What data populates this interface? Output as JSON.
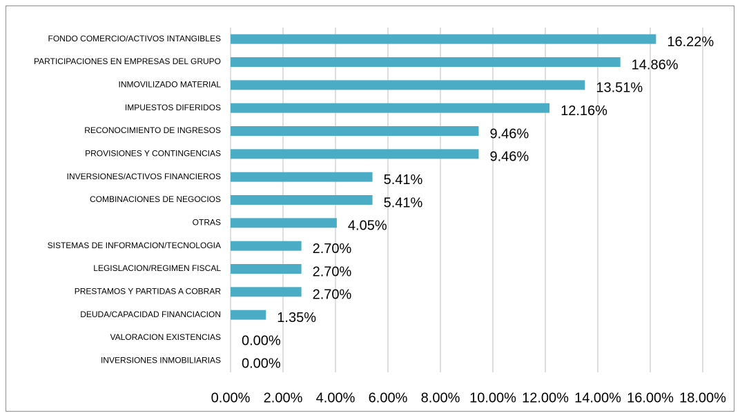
{
  "chart_data": {
    "type": "bar",
    "orientation": "horizontal",
    "categories": [
      "FONDO COMERCIO/ACTIVOS INTANGIBLES",
      "PARTICIPACIONES EN EMPRESAS DEL GRUPO",
      "INMOVILIZADO MATERIAL",
      "IMPUESTOS DIFERIDOS",
      "RECONOCIMIENTO DE INGRESOS",
      "PROVISIONES Y CONTINGENCIAS",
      "INVERSIONES/ACTIVOS FINANCIEROS",
      "COMBINACIONES DE NEGOCIOS",
      "OTRAS",
      "SISTEMAS DE INFORMACION/TECNOLOGIA",
      "LEGISLACION/REGIMEN FISCAL",
      "PRESTAMOS Y PARTIDAS A COBRAR",
      "DEUDA/CAPACIDAD FINANCIACION",
      "VALORACION EXISTENCIAS",
      "INVERSIONES INMOBILIARIAS"
    ],
    "values": [
      16.22,
      14.86,
      13.51,
      12.16,
      9.46,
      9.46,
      5.41,
      5.41,
      4.05,
      2.7,
      2.7,
      2.7,
      1.35,
      0,
      0
    ],
    "value_labels": [
      "16.22%",
      "14.86%",
      "13.51%",
      "12.16%",
      "9.46%",
      "9.46%",
      "5.41%",
      "5.41%",
      "4.05%",
      "2.70%",
      "2.70%",
      "2.70%",
      "1.35%",
      "0.00%",
      "0.00%"
    ],
    "color": "#4bacc6",
    "xlim": [
      0,
      18
    ],
    "xticks": [
      {
        "value": 0,
        "label": "0.00%"
      },
      {
        "value": 2,
        "label": "2.00%"
      },
      {
        "value": 4,
        "label": "4.00%"
      },
      {
        "value": 6,
        "label": "6.00%"
      },
      {
        "value": 8,
        "label": "8.00%"
      },
      {
        "value": 10,
        "label": "10.00%"
      },
      {
        "value": 12,
        "label": "12.00%"
      },
      {
        "value": 14,
        "label": "14.00%"
      },
      {
        "value": 16,
        "label": "16.00%"
      },
      {
        "value": 18,
        "label": "18.00%"
      }
    ],
    "grid": true
  }
}
